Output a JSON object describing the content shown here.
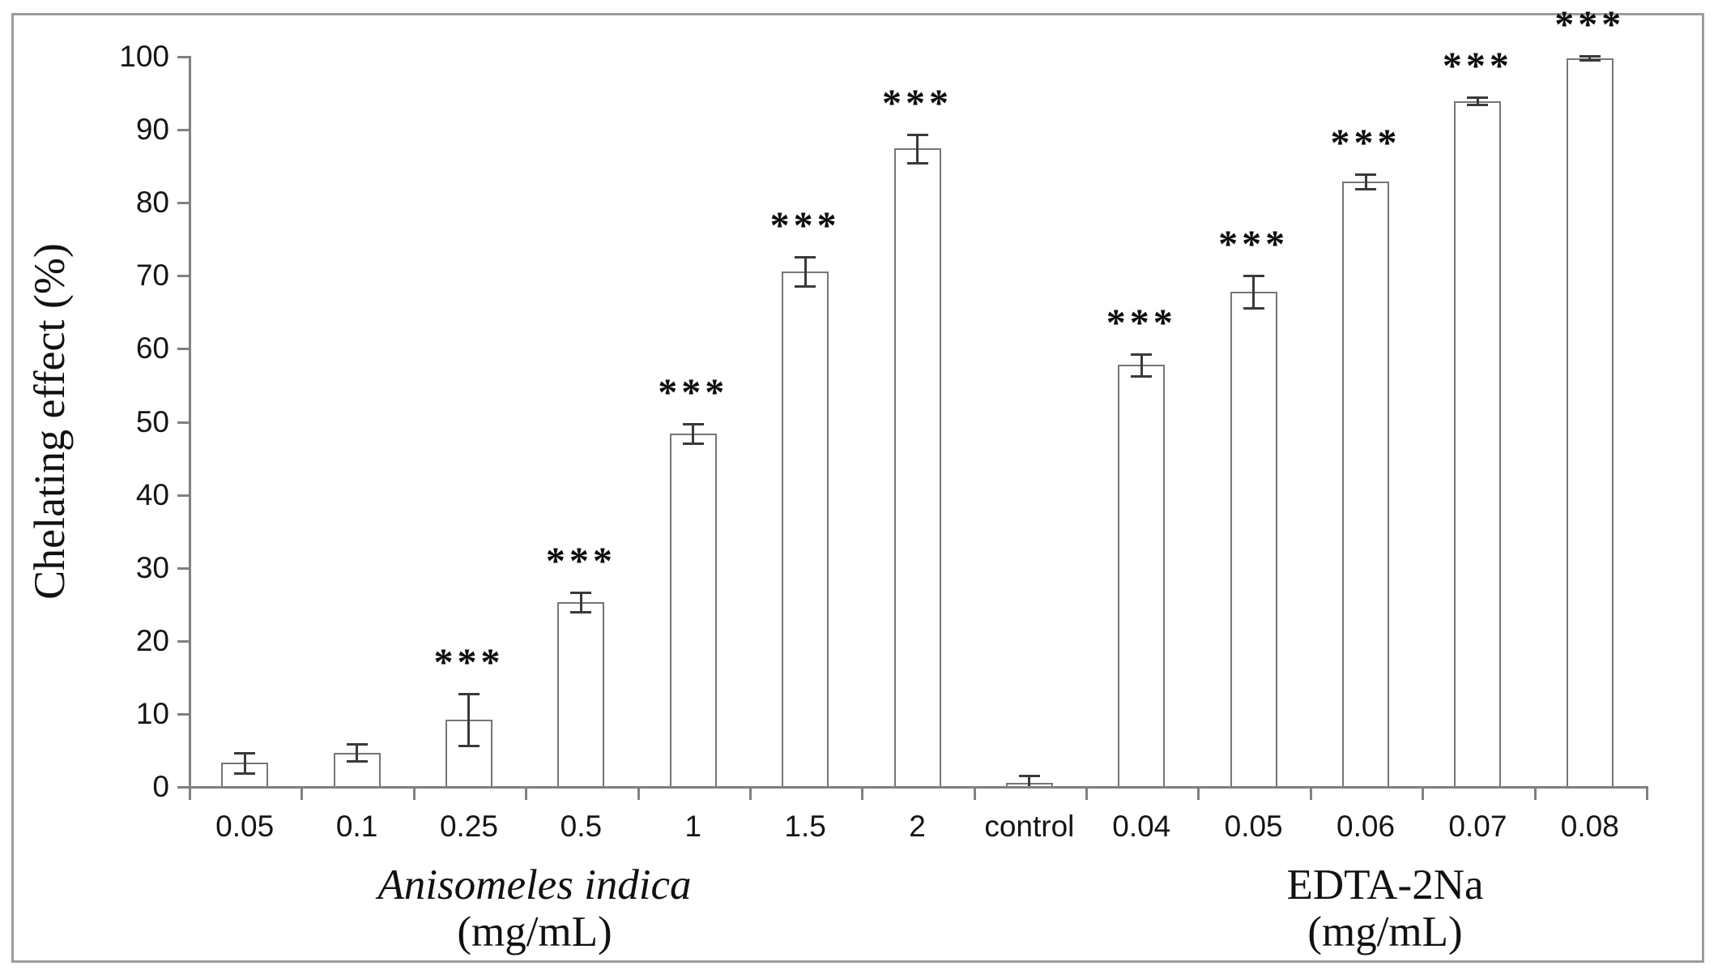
{
  "figure": {
    "background": "#ffffff",
    "border_color": "#9c9c9c"
  },
  "chart_data": {
    "type": "bar",
    "title": "",
    "ylabel": "Chelating effect (%)",
    "xlabel": "",
    "categories": [
      "0.05",
      "0.1",
      "0.25",
      "0.5",
      "1",
      "1.5",
      "2",
      "control",
      "0.04",
      "0.05",
      "0.06",
      "0.07",
      "0.08"
    ],
    "series": [
      {
        "name": "Chelating effect (%)",
        "values": [
          3.2,
          4.6,
          9.1,
          25.2,
          48.3,
          70.5,
          87.3,
          0.4,
          57.7,
          67.7,
          82.8,
          93.8,
          99.7
        ]
      }
    ],
    "error_bars": [
      1.4,
      1.2,
      3.6,
      1.3,
      1.3,
      2.0,
      1.9,
      1.0,
      1.5,
      2.2,
      1.0,
      0.5,
      0.3
    ],
    "significance": [
      false,
      false,
      true,
      true,
      true,
      true,
      true,
      false,
      true,
      true,
      true,
      true,
      true
    ],
    "significance_label": "***",
    "ylim": [
      0,
      100
    ],
    "yticks": [
      0,
      10,
      20,
      30,
      40,
      50,
      60,
      70,
      80,
      90,
      100
    ],
    "grid": false,
    "legend_position": "none",
    "bar_fill": "#ffffff",
    "bar_border": "#767676",
    "axis_color": "#808080",
    "error_color": "#3a3a3a",
    "text_color": "#111111",
    "xlabel_groups": [
      {
        "name": "Anisomeles indica",
        "unit": "(mg/mL)",
        "italic": true,
        "categories": [
          "0.05",
          "0.1",
          "0.25",
          "0.5",
          "1",
          "1.5",
          "2"
        ]
      },
      {
        "name": "EDTA-2Na",
        "unit": "(mg/mL)",
        "italic": false,
        "categories": [
          "0.04",
          "0.05",
          "0.06",
          "0.07",
          "0.08"
        ]
      }
    ]
  }
}
